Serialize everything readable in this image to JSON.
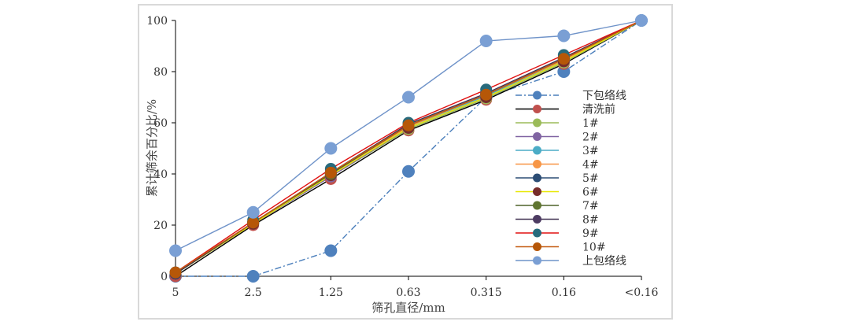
{
  "chart_data": {
    "type": "line",
    "categories": [
      "5",
      "2.5",
      "1.25",
      "0.63",
      "0.315",
      "0.16",
      "<0.16"
    ],
    "xlabel": "筛孔直径/mm",
    "ylabel": "累计筛余百分比/%",
    "ylim": [
      0,
      100
    ],
    "yticks": [
      "0",
      "20",
      "40",
      "60",
      "80",
      "100"
    ],
    "grid": false,
    "legend_position": "right-inside",
    "series": [
      {
        "name": "下包络线",
        "color": "#4a7ebb",
        "dash": "dashdot",
        "values": [
          0,
          0,
          10,
          41,
          70,
          80,
          100
        ]
      },
      {
        "name": "清洗前",
        "color": "#000000",
        "dash": "solid",
        "values": [
          0,
          20,
          38,
          57,
          69,
          83,
          100
        ]
      },
      {
        "name": "1#",
        "color": "#9bbb59",
        "dash": "solid",
        "values": [
          1,
          20.5,
          39,
          57.5,
          69.5,
          83.5,
          100
        ]
      },
      {
        "name": "2#",
        "color": "#8064a2",
        "dash": "solid",
        "values": [
          1,
          20.5,
          39,
          58,
          70,
          84,
          100
        ]
      },
      {
        "name": "3#",
        "color": "#4bacc6",
        "dash": "solid",
        "values": [
          1,
          21,
          40,
          58.5,
          70.5,
          84.5,
          100
        ]
      },
      {
        "name": "4#",
        "color": "#f79646",
        "dash": "solid",
        "values": [
          1,
          21,
          40,
          58.5,
          71,
          84.5,
          100
        ]
      },
      {
        "name": "5#",
        "color": "#2c4d75",
        "dash": "solid",
        "values": [
          1,
          21,
          40.5,
          59,
          71,
          85,
          100
        ]
      },
      {
        "name": "6#",
        "color": "#e8e800",
        "dash": "solid",
        "values": [
          1,
          20.5,
          39.5,
          58,
          70,
          84,
          100
        ]
      },
      {
        "name": "7#",
        "color": "#4f6228",
        "dash": "solid",
        "values": [
          1,
          21,
          40,
          59,
          71,
          85,
          100
        ]
      },
      {
        "name": "8#",
        "color": "#403151",
        "dash": "solid",
        "values": [
          1,
          21,
          40.5,
          59.5,
          71.5,
          85.5,
          100
        ]
      },
      {
        "name": "9#",
        "color": "#e01010",
        "dash": "solid",
        "values": [
          1.5,
          22,
          42,
          60,
          73,
          86.5,
          100
        ]
      },
      {
        "name": "10#",
        "color": "#c55a11",
        "dash": "solid",
        "values": [
          1.5,
          21,
          40.5,
          59,
          71,
          85,
          100
        ]
      },
      {
        "name": "上包络线",
        "color": "#6f93c9",
        "dash": "solid",
        "values": [
          10,
          25,
          50,
          70,
          92,
          94,
          100
        ]
      }
    ],
    "marker_colors": {
      "下包络线": "#4f81bd",
      "清洗前": "#c0504d",
      "1#": "#9bbb59",
      "2#": "#8064a2",
      "3#": "#4bacc6",
      "4#": "#f79646",
      "5#": "#2c4d75",
      "6#": "#772c2a",
      "7#": "#5f7530",
      "8#": "#4d3b62",
      "9#": "#276a7c",
      "10#": "#b65708",
      "上包络线": "#7a9fd4"
    }
  }
}
